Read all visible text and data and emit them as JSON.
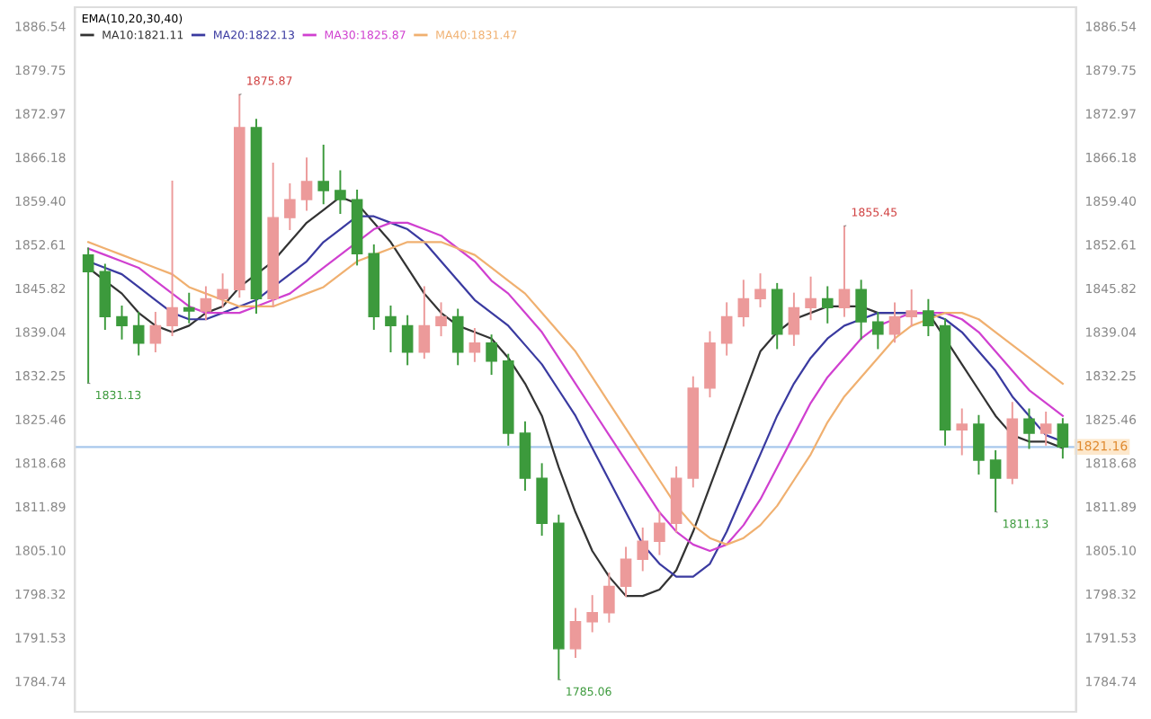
{
  "chart_data": {
    "type": "candlestick",
    "categories": [
      null,
      null,
      null,
      null,
      null,
      null,
      null,
      null,
      null,
      null,
      null,
      null,
      null,
      null,
      null,
      null,
      null,
      null,
      null,
      null,
      null,
      null,
      null,
      null,
      null,
      null,
      null,
      null,
      null,
      null,
      null,
      null,
      null,
      null,
      null,
      null,
      null,
      null,
      null,
      null,
      null,
      null,
      null,
      null,
      null,
      null,
      null,
      null,
      null,
      null,
      null,
      null,
      null,
      null,
      null,
      null,
      null,
      null,
      null
    ],
    "ohlc": [
      [
        1851.0,
        1852.0,
        1831.13,
        1848.4
      ],
      [
        1848.4,
        1849.5,
        1839.5,
        1841.4
      ],
      [
        1841.4,
        1843.0,
        1838.0,
        1840.0
      ],
      [
        1840.0,
        1842.0,
        1835.5,
        1837.3
      ],
      [
        1837.3,
        1842.0,
        1836.0,
        1840.0
      ],
      [
        1840.0,
        1862.4,
        1838.5,
        1842.8
      ],
      [
        1842.8,
        1845.0,
        1840.5,
        1842.3
      ],
      [
        1842.3,
        1846.0,
        1841.0,
        1844.2
      ],
      [
        1844.2,
        1848.0,
        1843.0,
        1845.6
      ],
      [
        1845.6,
        1875.87,
        1844.5,
        1870.8
      ],
      [
        1870.8,
        1872.0,
        1842.0,
        1844.2
      ],
      [
        1844.2,
        1865.2,
        1843.0,
        1856.8
      ],
      [
        1856.8,
        1862.0,
        1855.0,
        1859.6
      ],
      [
        1859.6,
        1866.0,
        1858.0,
        1862.4
      ],
      [
        1862.4,
        1868.0,
        1859.0,
        1861.0
      ],
      [
        1861.0,
        1864.0,
        1857.5,
        1859.6
      ],
      [
        1859.6,
        1861.0,
        1849.5,
        1851.2
      ],
      [
        1851.2,
        1852.5,
        1839.5,
        1841.4
      ],
      [
        1841.4,
        1843.0,
        1836.0,
        1840.0
      ],
      [
        1840.0,
        1841.5,
        1834.0,
        1835.9
      ],
      [
        1835.9,
        1846.0,
        1835.0,
        1840.0
      ],
      [
        1840.0,
        1843.5,
        1838.5,
        1841.4
      ],
      [
        1841.4,
        1842.5,
        1834.0,
        1835.9
      ],
      [
        1835.9,
        1839.5,
        1834.5,
        1837.3
      ],
      [
        1837.3,
        1838.5,
        1832.5,
        1834.5
      ],
      [
        1834.5,
        1835.5,
        1821.5,
        1823.3
      ],
      [
        1823.3,
        1825.0,
        1814.5,
        1816.3
      ],
      [
        1816.3,
        1818.5,
        1807.5,
        1809.3
      ],
      [
        1809.3,
        1810.5,
        1785.06,
        1789.8
      ],
      [
        1789.8,
        1796.0,
        1788.5,
        1794.0
      ],
      [
        1794.0,
        1798.0,
        1792.5,
        1795.4
      ],
      [
        1795.4,
        1801.5,
        1794.0,
        1799.5
      ],
      [
        1799.5,
        1805.5,
        1798.0,
        1803.7
      ],
      [
        1803.7,
        1808.5,
        1802.0,
        1806.5
      ],
      [
        1806.5,
        1811.0,
        1804.5,
        1809.3
      ],
      [
        1809.3,
        1818.0,
        1808.0,
        1816.3
      ],
      [
        1816.3,
        1832.0,
        1815.0,
        1830.3
      ],
      [
        1830.3,
        1839.0,
        1829.0,
        1837.3
      ],
      [
        1837.3,
        1843.5,
        1835.5,
        1841.4
      ],
      [
        1841.4,
        1847.0,
        1840.0,
        1844.2
      ],
      [
        1844.2,
        1848.0,
        1843.0,
        1845.6
      ],
      [
        1845.6,
        1846.5,
        1836.5,
        1838.7
      ],
      [
        1838.7,
        1845.0,
        1837.0,
        1842.8
      ],
      [
        1842.8,
        1847.5,
        1841.0,
        1844.2
      ],
      [
        1844.2,
        1846.0,
        1840.5,
        1842.8
      ],
      [
        1842.8,
        1855.45,
        1841.5,
        1845.6
      ],
      [
        1845.6,
        1847.0,
        1838.0,
        1840.6
      ],
      [
        1840.6,
        1842.0,
        1836.5,
        1838.7
      ],
      [
        1838.7,
        1843.5,
        1837.5,
        1841.4
      ],
      [
        1841.4,
        1845.5,
        1840.0,
        1842.3
      ],
      [
        1842.3,
        1844.0,
        1838.5,
        1840.0
      ],
      [
        1840.0,
        1841.0,
        1821.5,
        1823.8
      ],
      [
        1823.8,
        1827.0,
        1820.0,
        1824.7
      ],
      [
        1824.7,
        1826.0,
        1817.0,
        1819.1
      ],
      [
        1819.1,
        1820.5,
        1811.13,
        1816.3
      ],
      [
        1816.3,
        1828.0,
        1815.5,
        1825.5
      ],
      [
        1825.5,
        1827.0,
        1821.0,
        1823.3
      ],
      [
        1823.3,
        1826.5,
        1821.5,
        1824.7
      ],
      [
        1824.7,
        1825.5,
        1819.5,
        1821.16
      ]
    ],
    "colors": [
      "#3c9a3c",
      "#3c9a3c",
      "#3c9a3c",
      "#3c9a3c",
      "#ec9a9a",
      "#ec9a9a",
      "#3c9a3c",
      "#ec9a9a",
      "#ec9a9a",
      "#ec9a9a",
      "#3c9a3c",
      "#ec9a9a",
      "#ec9a9a",
      "#ec9a9a",
      "#3c9a3c",
      "#3c9a3c",
      "#3c9a3c",
      "#3c9a3c",
      "#3c9a3c",
      "#3c9a3c",
      "#ec9a9a",
      "#ec9a9a",
      "#3c9a3c",
      "#ec9a9a",
      "#3c9a3c",
      "#3c9a3c",
      "#3c9a3c",
      "#3c9a3c",
      "#3c9a3c",
      "#ec9a9a",
      "#ec9a9a",
      "#ec9a9a",
      "#ec9a9a",
      "#ec9a9a",
      "#ec9a9a",
      "#ec9a9a",
      "#ec9a9a",
      "#ec9a9a",
      "#ec9a9a",
      "#ec9a9a",
      "#ec9a9a",
      "#3c9a3c",
      "#ec9a9a",
      "#ec9a9a",
      "#3c9a3c",
      "#ec9a9a",
      "#3c9a3c",
      "#3c9a3c",
      "#ec9a9a",
      "#ec9a9a",
      "#3c9a3c",
      "#3c9a3c",
      "#ec9a9a",
      "#3c9a3c",
      "#3c9a3c",
      "#ec9a9a",
      "#3c9a3c",
      "#ec9a9a",
      "#3c9a3c"
    ],
    "series": [
      {
        "type": "line",
        "name": "MA10:1821.11",
        "color": "#333333",
        "values": [
          1849,
          1847,
          1845,
          1842,
          1840,
          1839,
          1840,
          1842,
          1843,
          1846,
          1848,
          1850,
          1853,
          1856,
          1858,
          1860,
          1859,
          1856,
          1853,
          1849,
          1845,
          1842,
          1840,
          1839,
          1838,
          1835,
          1831,
          1826,
          1818,
          1811,
          1805,
          1801,
          1798,
          1798,
          1799,
          1802,
          1808,
          1815,
          1822,
          1829,
          1836,
          1839,
          1841,
          1842,
          1843,
          1843,
          1843,
          1842,
          1842,
          1842,
          1842,
          1838,
          1834,
          1830,
          1826,
          1823,
          1822,
          1822,
          1821
        ]
      },
      {
        "type": "line",
        "name": "MA20:1822.13",
        "color": "#3a3aa0",
        "values": [
          1850,
          1849,
          1848,
          1846,
          1844,
          1842,
          1841,
          1841,
          1842,
          1843,
          1844,
          1846,
          1848,
          1850,
          1853,
          1855,
          1857,
          1857,
          1856,
          1855,
          1853,
          1850,
          1847,
          1844,
          1842,
          1840,
          1837,
          1834,
          1830,
          1826,
          1821,
          1816,
          1811,
          1806,
          1803,
          1801,
          1801,
          1803,
          1808,
          1814,
          1820,
          1826,
          1831,
          1835,
          1838,
          1840,
          1841,
          1842,
          1842,
          1842,
          1842,
          1841,
          1839,
          1836,
          1833,
          1829,
          1826,
          1823,
          1822
        ]
      },
      {
        "type": "line",
        "name": "MA30:1825.87",
        "color": "#d040d0",
        "values": [
          1852,
          1851,
          1850,
          1849,
          1847,
          1845,
          1843,
          1842,
          1842,
          1842,
          1843,
          1844,
          1845,
          1847,
          1849,
          1851,
          1853,
          1855,
          1856,
          1856,
          1855,
          1854,
          1852,
          1850,
          1847,
          1845,
          1842,
          1839,
          1835,
          1831,
          1827,
          1823,
          1819,
          1815,
          1811,
          1808,
          1806,
          1805,
          1806,
          1809,
          1813,
          1818,
          1823,
          1828,
          1832,
          1835,
          1838,
          1840,
          1841,
          1842,
          1842,
          1842,
          1841,
          1839,
          1836,
          1833,
          1830,
          1828,
          1826
        ]
      },
      {
        "type": "line",
        "name": "MA40:1831.47",
        "color": "#f0b070",
        "values": [
          1853,
          1852,
          1851,
          1850,
          1849,
          1848,
          1846,
          1845,
          1844,
          1843,
          1843,
          1843,
          1844,
          1845,
          1846,
          1848,
          1850,
          1851,
          1852,
          1853,
          1853,
          1853,
          1852,
          1851,
          1849,
          1847,
          1845,
          1842,
          1839,
          1836,
          1832,
          1828,
          1824,
          1820,
          1816,
          1812,
          1809,
          1807,
          1806,
          1807,
          1809,
          1812,
          1816,
          1820,
          1825,
          1829,
          1832,
          1835,
          1838,
          1840,
          1841,
          1842,
          1842,
          1841,
          1839,
          1837,
          1835,
          1833,
          1831
        ]
      }
    ],
    "legend_title": "EMA(10,20,30,40)",
    "legend": "top left",
    "ylim": [
      1780.0,
      1889.5
    ],
    "yticks": [
      1784.74,
      1791.53,
      1798.32,
      {
        "value": 1805.1,
        "label": "1805.10"
      },
      1811.89,
      1818.68,
      1825.46,
      1832.25,
      1839.04,
      1845.82,
      1852.61,
      {
        "value": 1859.4,
        "label": "1859.40"
      },
      1866.18,
      1872.97,
      1879.75,
      1886.54
    ],
    "y2lim": [
      1780.0,
      1889.5
    ],
    "y2ticks": [
      1784.74,
      1791.53,
      1798.32,
      {
        "value": 1805.1,
        "label": "1805.10"
      },
      1811.89,
      1818.68,
      1825.46,
      1832.25,
      1839.04,
      1845.82,
      1852.61,
      {
        "value": 1859.4,
        "label": "1859.40"
      },
      1866.18,
      1872.97,
      1879.75,
      1886.54
    ],
    "tick_labels": "y",
    "ref_lines": [
      {
        "axis": "y",
        "value": 1821.16,
        "label": "1821.16",
        "color": "#a8c8ec"
      }
    ],
    "annotations": [
      "1831.13",
      "1875.87",
      "1785.06",
      "1855.45",
      "1811.13"
    ]
  }
}
